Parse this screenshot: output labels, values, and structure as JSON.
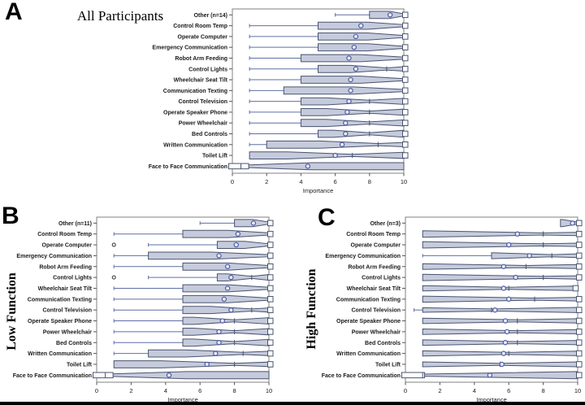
{
  "figure": {
    "background": "#ffffff",
    "description": "Three notched horizontal box plots of task importance ratings"
  },
  "colors": {
    "box_fill": "#c6cbdc",
    "box_stroke": "#4a5470",
    "whisker": "#5f6fa5",
    "mean_stroke": "#4c5ca8",
    "mean_fill": "#e6e9f3",
    "fold_fill": "#ffffff",
    "outlier_stroke": "#333333",
    "frame": "#828282",
    "tick": "#555555",
    "text": "#1a1a1a"
  },
  "chart_data": [
    {
      "type": "box",
      "panel_letter": "A",
      "title": "All Participants",
      "orientation": "horizontal",
      "n": 14,
      "xlabel": "Importance",
      "xlim": [
        0,
        10
      ],
      "xticks": [
        0,
        2,
        4,
        6,
        8,
        10
      ],
      "categories": [
        "Other (n=14)",
        "Control Room Temp",
        "Operate Computer",
        "Emergency Communication",
        "Robot Arm Feeding",
        "Control Lights",
        "Wheelchair Seat Tilt",
        "Communication Texting",
        "Control Television",
        "Operate Speaker Phone",
        "Power Wheelchair",
        "Bed Controls",
        "Written Communication",
        "Toilet Lift",
        "Face to Face Communication"
      ],
      "rows": [
        {
          "lo": 6,
          "q1": 8,
          "med": 10,
          "q3": 10,
          "hi": 10,
          "mean": 9.2,
          "outliers": []
        },
        {
          "lo": 1,
          "q1": 5,
          "med": 10,
          "q3": 10,
          "hi": 10,
          "mean": 7.5,
          "outliers": []
        },
        {
          "lo": 1,
          "q1": 5,
          "med": 10,
          "q3": 10,
          "hi": 10,
          "mean": 7.2,
          "outliers": []
        },
        {
          "lo": 1,
          "q1": 5,
          "med": 10,
          "q3": 10,
          "hi": 10,
          "mean": 7.1,
          "outliers": []
        },
        {
          "lo": 1,
          "q1": 4,
          "med": 10,
          "q3": 10,
          "hi": 10,
          "mean": 6.8,
          "outliers": []
        },
        {
          "lo": 1,
          "q1": 5,
          "med": 9,
          "q3": 10,
          "hi": 10,
          "mean": 7.2,
          "outliers": []
        },
        {
          "lo": 1,
          "q1": 4,
          "med": 10,
          "q3": 10,
          "hi": 10,
          "mean": 6.9,
          "outliers": []
        },
        {
          "lo": 1,
          "q1": 3,
          "med": 10,
          "q3": 10,
          "hi": 10,
          "mean": 6.9,
          "outliers": []
        },
        {
          "lo": 1,
          "q1": 4,
          "med": 8,
          "q3": 10,
          "hi": 10,
          "mean": 6.8,
          "outliers": []
        },
        {
          "lo": 1,
          "q1": 4,
          "med": 8,
          "q3": 10,
          "hi": 10,
          "mean": 6.7,
          "outliers": []
        },
        {
          "lo": 1,
          "q1": 4,
          "med": 8,
          "q3": 10,
          "hi": 10,
          "mean": 6.6,
          "outliers": []
        },
        {
          "lo": 1,
          "q1": 5,
          "med": 8,
          "q3": 10,
          "hi": 10,
          "mean": 6.6,
          "outliers": []
        },
        {
          "lo": 1,
          "q1": 2,
          "med": 8.5,
          "q3": 10,
          "hi": 10,
          "mean": 6.4,
          "outliers": []
        },
        {
          "lo": 1,
          "q1": 1,
          "med": 7,
          "q3": 10,
          "hi": 10,
          "mean": 6.0,
          "outliers": []
        },
        {
          "lo": 0,
          "q1": 0,
          "med": 0.5,
          "q3": 10,
          "hi": 10,
          "mean": 4.4,
          "outliers": []
        }
      ]
    },
    {
      "type": "box",
      "panel_letter": "B",
      "title": "Low Function",
      "orientation": "horizontal",
      "n": 11,
      "xlabel": "Importance",
      "xlim": [
        0,
        10
      ],
      "xticks": [
        0,
        2,
        4,
        6,
        8,
        10
      ],
      "categories": [
        "Other (n=11)",
        "Control Room Temp",
        "Operate Computer",
        "Emergency Communication",
        "Robot Arm Feeding",
        "Control Lights",
        "Wheelchair Seat Tilt",
        "Communication Texting",
        "Control Television",
        "Operate Speaker Phone",
        "Power Wheelchair",
        "Bed Controls",
        "Written Communication",
        "Toilet Lift",
        "Face to Face Communication"
      ],
      "rows": [
        {
          "lo": 6,
          "q1": 8,
          "med": 10,
          "q3": 10,
          "hi": 10,
          "mean": 9.1,
          "outliers": []
        },
        {
          "lo": 1,
          "q1": 5,
          "med": 10,
          "q3": 10,
          "hi": 10,
          "mean": 8.2,
          "outliers": []
        },
        {
          "lo": 3,
          "q1": 7,
          "med": 10,
          "q3": 10,
          "hi": 10,
          "mean": 8.1,
          "outliers": [
            1
          ]
        },
        {
          "lo": 1,
          "q1": 3,
          "med": 10,
          "q3": 10,
          "hi": 10,
          "mean": 7.1,
          "outliers": []
        },
        {
          "lo": 1,
          "q1": 5,
          "med": 10,
          "q3": 10,
          "hi": 10,
          "mean": 7.6,
          "outliers": []
        },
        {
          "lo": 3,
          "q1": 7,
          "med": 9,
          "q3": 10,
          "hi": 10,
          "mean": 7.8,
          "outliers": [
            1
          ]
        },
        {
          "lo": 1,
          "q1": 5,
          "med": 10,
          "q3": 10,
          "hi": 10,
          "mean": 7.6,
          "outliers": []
        },
        {
          "lo": 1,
          "q1": 5,
          "med": 10,
          "q3": 10,
          "hi": 10,
          "mean": 7.4,
          "outliers": []
        },
        {
          "lo": 1,
          "q1": 5,
          "med": 9,
          "q3": 10,
          "hi": 10,
          "mean": 7.8,
          "outliers": []
        },
        {
          "lo": 1,
          "q1": 5,
          "med": 8,
          "q3": 10,
          "hi": 10,
          "mean": 7.3,
          "outliers": []
        },
        {
          "lo": 1,
          "q1": 5,
          "med": 8,
          "q3": 10,
          "hi": 10,
          "mean": 7.1,
          "outliers": []
        },
        {
          "lo": 1,
          "q1": 5,
          "med": 8,
          "q3": 10,
          "hi": 10,
          "mean": 7.1,
          "outliers": []
        },
        {
          "lo": 1,
          "q1": 3,
          "med": 8.5,
          "q3": 10,
          "hi": 10,
          "mean": 6.9,
          "outliers": []
        },
        {
          "lo": 1,
          "q1": 1,
          "med": 8,
          "q3": 10,
          "hi": 10,
          "mean": 6.4,
          "outliers": []
        },
        {
          "lo": 0,
          "q1": 0,
          "med": 0.5,
          "q3": 10,
          "hi": 10,
          "mean": 4.2,
          "outliers": []
        }
      ]
    },
    {
      "type": "box",
      "panel_letter": "C",
      "title": "High Function",
      "orientation": "horizontal",
      "n": 3,
      "xlabel": "Importance",
      "xlim": [
        0,
        10
      ],
      "xticks": [
        0,
        2,
        4,
        6,
        8,
        10
      ],
      "categories": [
        "Other (n=3)",
        "Control Room Temp",
        "Operate Computer",
        "Emergency Communication",
        "Robot Arm Feeding",
        "Control Lights",
        "Wheelchair Seat Tilt",
        "Communication Texting",
        "Control Television",
        "Operate Speaker Phone",
        "Power Wheelchair",
        "Bed Controls",
        "Written Communication",
        "Toilet Lift",
        "Face to Face Communication"
      ],
      "rows": [
        {
          "lo": 9,
          "q1": 9,
          "med": 10,
          "q3": 10,
          "hi": 10,
          "mean": 9.7,
          "outliers": []
        },
        {
          "lo": 1,
          "q1": 1,
          "med": 8,
          "q3": 10,
          "hi": 10,
          "mean": 6.5,
          "outliers": []
        },
        {
          "lo": 1,
          "q1": 1,
          "med": 8,
          "q3": 10,
          "hi": 10,
          "mean": 6.0,
          "outliers": []
        },
        {
          "lo": 1,
          "q1": 5,
          "med": 8.5,
          "q3": 10,
          "hi": 10,
          "mean": 7.2,
          "outliers": []
        },
        {
          "lo": 1,
          "q1": 1,
          "med": 7,
          "q3": 10,
          "hi": 10,
          "mean": 5.7,
          "outliers": []
        },
        {
          "lo": 1,
          "q1": 1,
          "med": 8,
          "q3": 10,
          "hi": 10,
          "mean": 6.4,
          "outliers": []
        },
        {
          "lo": 1,
          "q1": 1,
          "med": 6,
          "q3": 9.8,
          "hi": 9.8,
          "mean": 5.7,
          "outliers": []
        },
        {
          "lo": 1,
          "q1": 1,
          "med": 7.5,
          "q3": 10,
          "hi": 10,
          "mean": 6.0,
          "outliers": []
        },
        {
          "lo": 0.5,
          "q1": 1,
          "med": 5,
          "q3": 10,
          "hi": 10,
          "mean": 5.2,
          "outliers": []
        },
        {
          "lo": 1,
          "q1": 1,
          "med": 6.5,
          "q3": 10,
          "hi": 10,
          "mean": 5.8,
          "outliers": []
        },
        {
          "lo": 1,
          "q1": 1,
          "med": 6.5,
          "q3": 10,
          "hi": 10,
          "mean": 5.9,
          "outliers": []
        },
        {
          "lo": 1,
          "q1": 1,
          "med": 6.5,
          "q3": 10,
          "hi": 10,
          "mean": 5.8,
          "outliers": []
        },
        {
          "lo": 1,
          "q1": 1,
          "med": 6,
          "q3": 10,
          "hi": 10,
          "mean": 5.7,
          "outliers": []
        },
        {
          "lo": 1,
          "q1": 1,
          "med": 5.5,
          "q3": 10,
          "hi": 10,
          "mean": 5.6,
          "outliers": []
        },
        {
          "lo": 0,
          "q1": 0,
          "med": 1,
          "q3": 10,
          "hi": 10,
          "mean": 4.9,
          "outliers": []
        }
      ]
    }
  ]
}
